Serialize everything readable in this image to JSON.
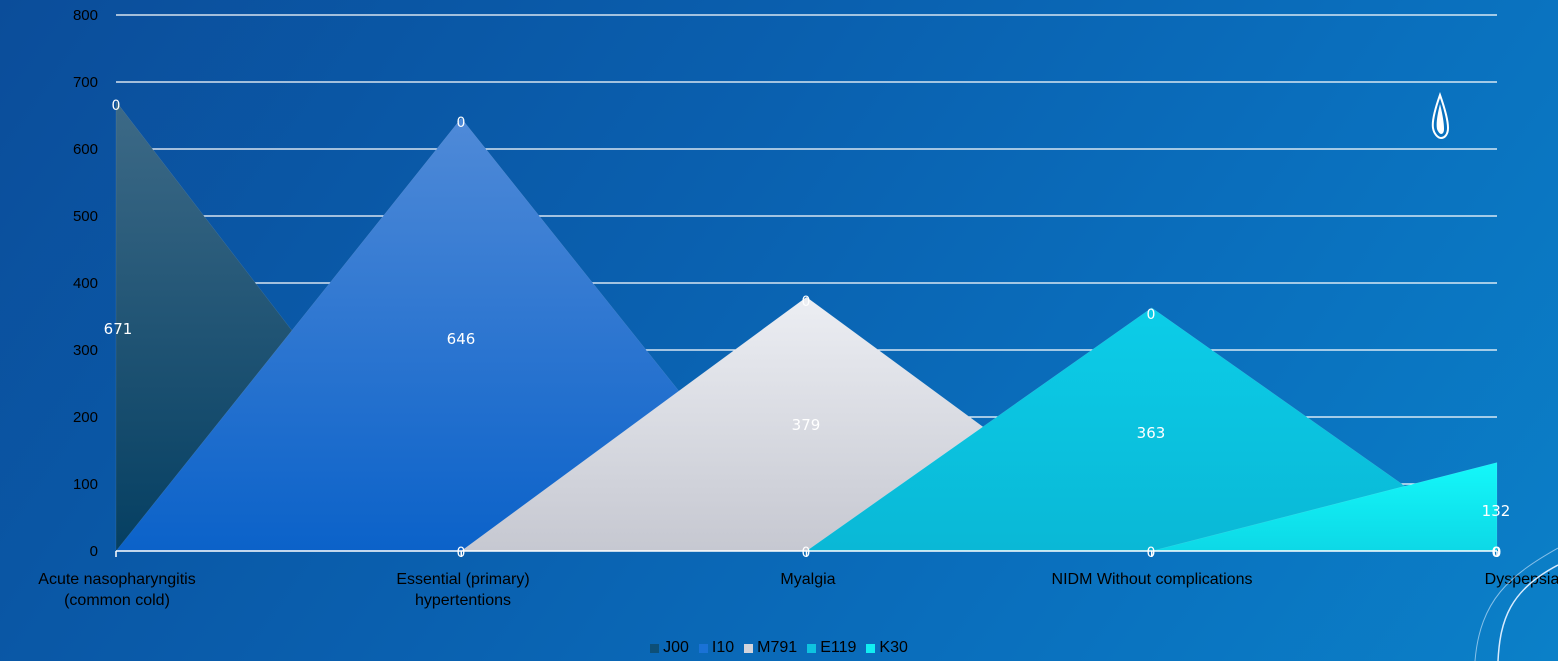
{
  "chart_data": {
    "type": "area",
    "title": "",
    "xlabel": "",
    "ylabel": "",
    "ylim": [
      0,
      800
    ],
    "yticks": [
      0,
      100,
      200,
      300,
      400,
      500,
      600,
      700,
      800
    ],
    "grid": true,
    "legend_position": "bottom",
    "categories": [
      [
        "Acute nasopharyngitis",
        "(common cold)"
      ],
      [
        "Essential (primary)",
        "hypertentions"
      ],
      [
        "Myalgia"
      ],
      [
        "NIDM Without complications"
      ],
      [
        "Dyspepsia"
      ]
    ],
    "series": [
      {
        "name": "J00",
        "color": "#0d4f78",
        "values": [
          671,
          0,
          0,
          0,
          0
        ]
      },
      {
        "name": "I10",
        "color": "#1a72d6",
        "values": [
          0,
          646,
          0,
          0,
          0
        ]
      },
      {
        "name": "M791",
        "color": "#d2d4dc",
        "values": [
          0,
          0,
          379,
          0,
          0
        ]
      },
      {
        "name": "E119",
        "color": "#0ec3e0",
        "values": [
          0,
          0,
          0,
          363,
          0
        ]
      },
      {
        "name": "K30",
        "color": "#11eef2",
        "values": [
          0,
          0,
          0,
          0,
          132
        ]
      }
    ],
    "data_labels": [
      "671",
      "646",
      "379",
      "363",
      "132"
    ],
    "zero_labels": [
      "0",
      "0",
      "0",
      "0",
      "0",
      "0",
      "0",
      "0",
      "0"
    ]
  }
}
